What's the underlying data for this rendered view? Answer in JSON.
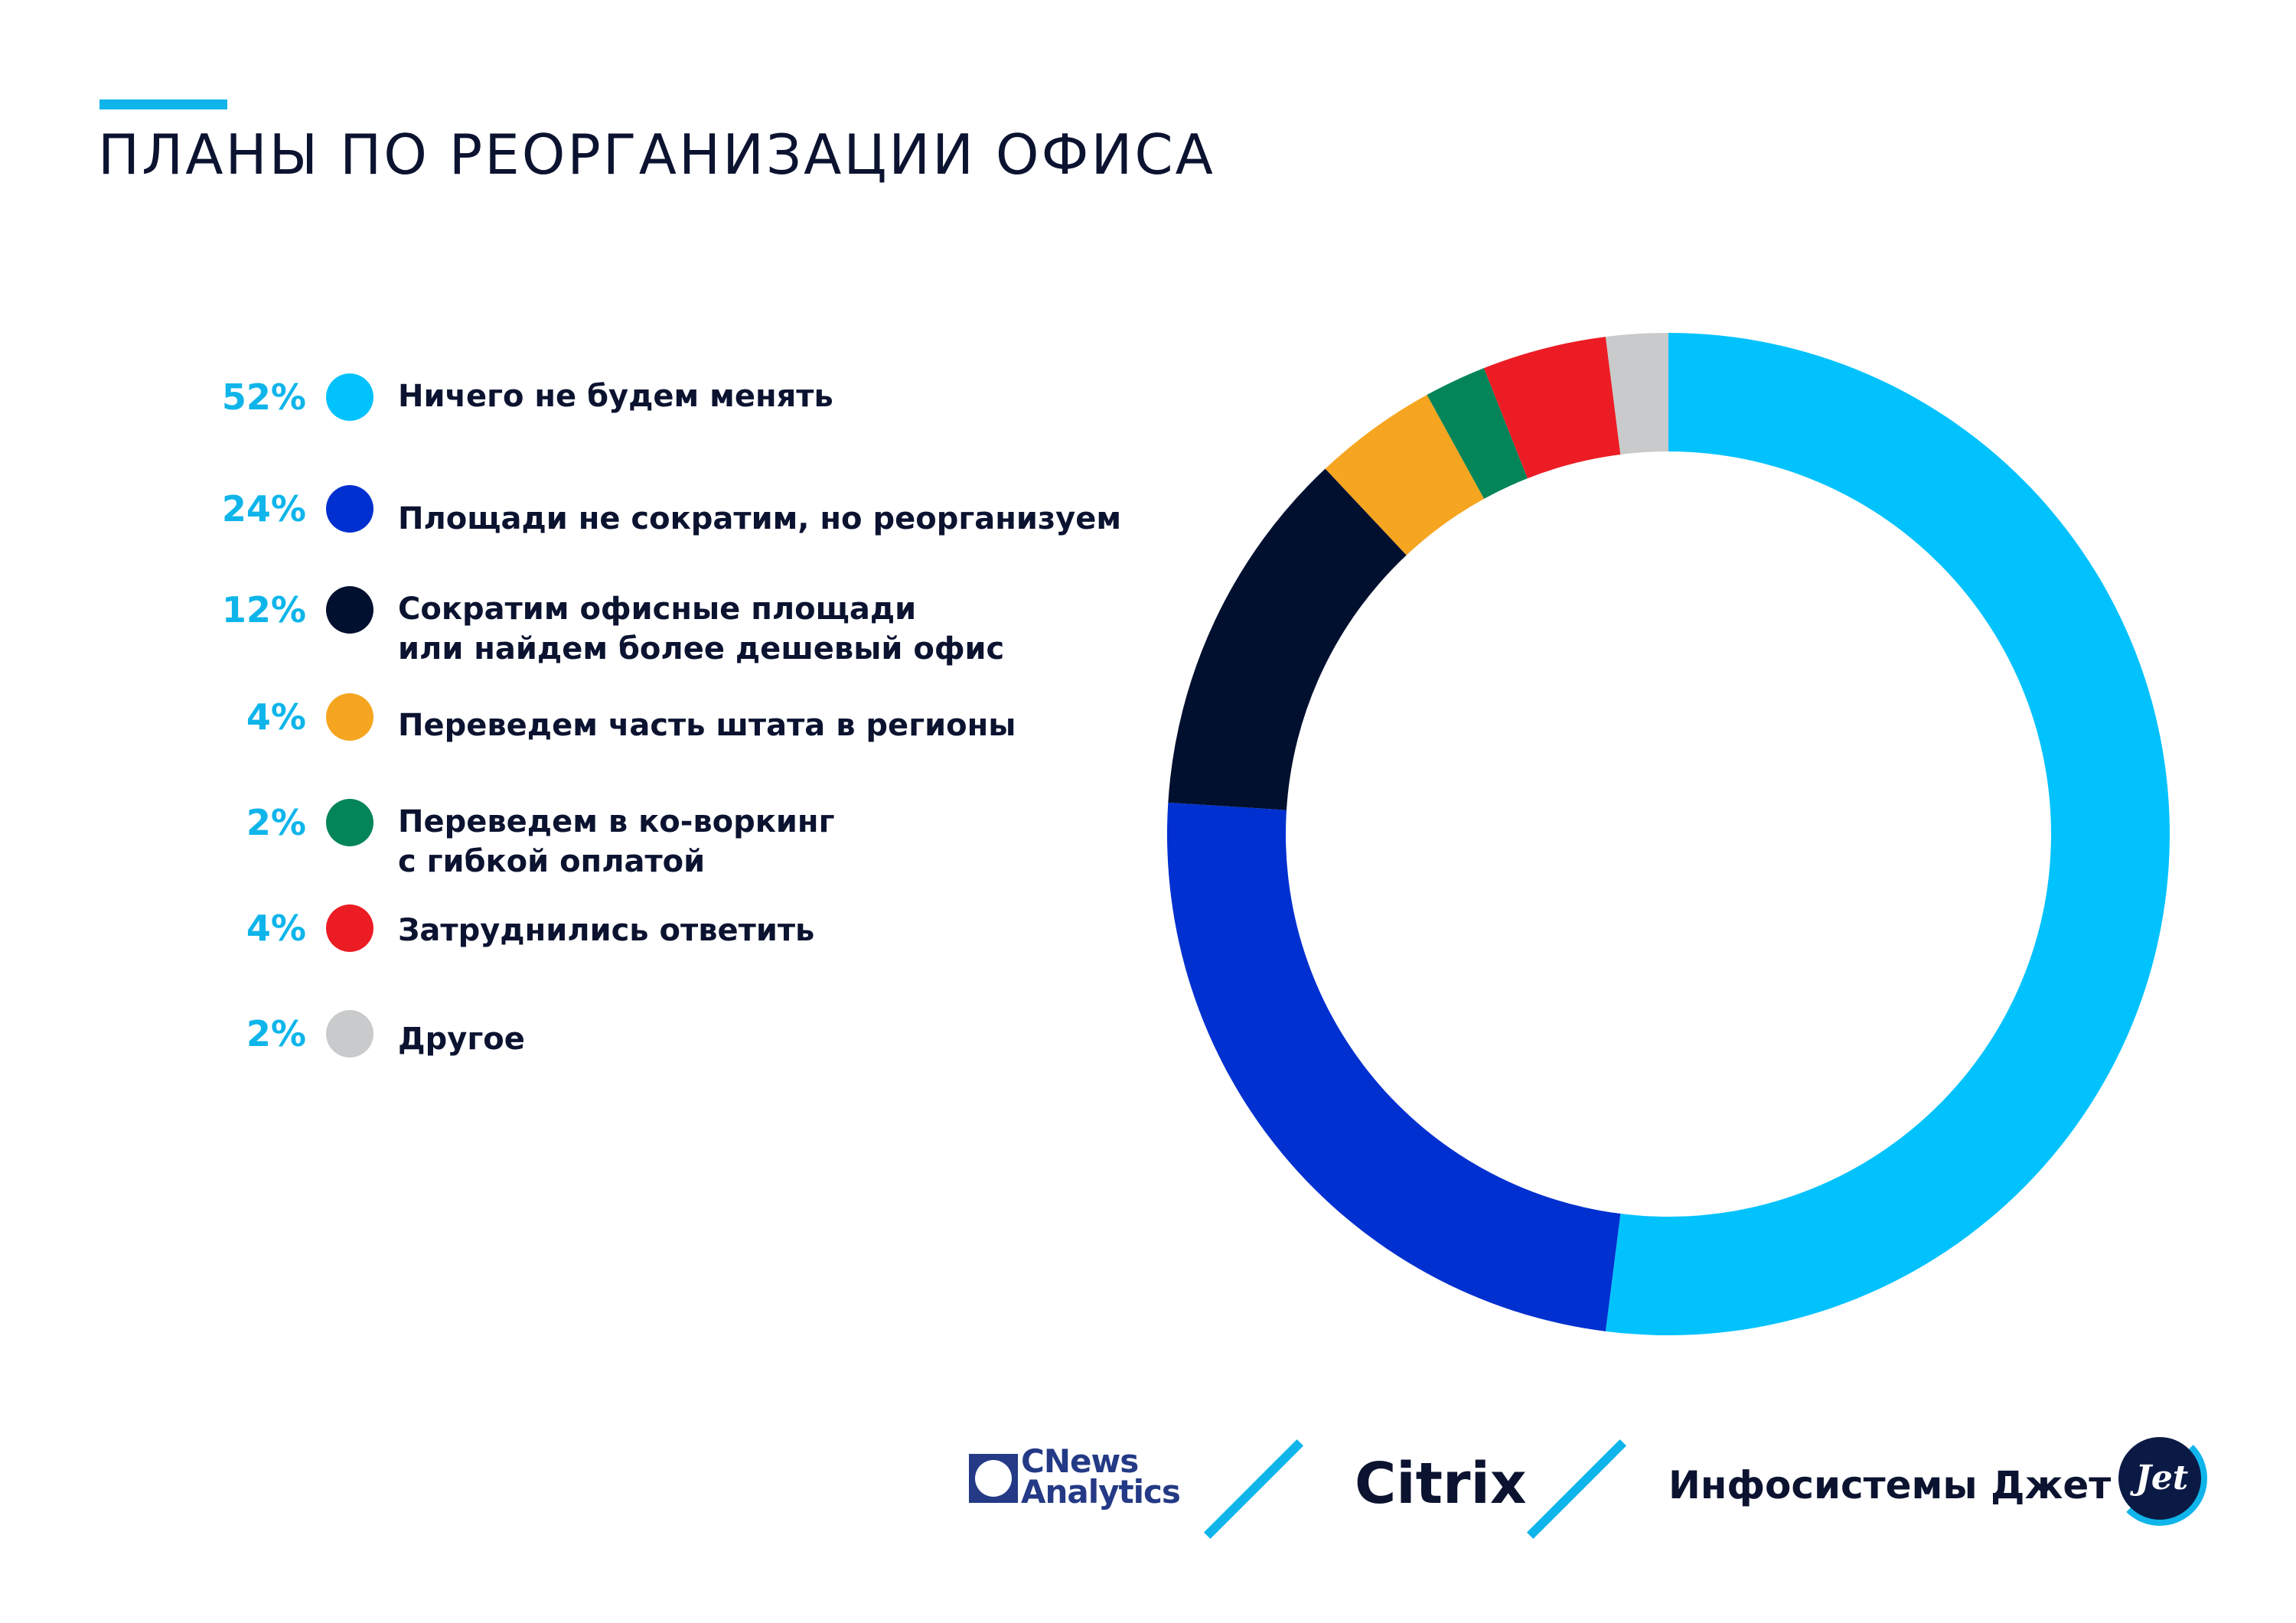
{
  "page": {
    "title": "ПЛАНЫ ПО РЕОРГАНИЗАЦИИ ОФИСА"
  },
  "colors": {
    "accent": "#0fb5ea",
    "text": "#0b1330"
  },
  "chart_data": {
    "type": "pie",
    "variant": "donut",
    "title": "",
    "series": [
      {
        "label": "Ничего не будем менять",
        "percent_label": "52%",
        "value": 52,
        "color": "#02c2fd"
      },
      {
        "label": "Площади не сократим, но реорганизуем",
        "percent_label": "24%",
        "value": 24,
        "color": "#0030d0"
      },
      {
        "label": "Сократим офисные площади\nили найдем более дешевый офис",
        "percent_label": "12%",
        "value": 12,
        "color": "#021030"
      },
      {
        "label": "Переведем часть штата в регионы",
        "percent_label": "4%",
        "value": 4,
        "color": "#f5a51f"
      },
      {
        "label": "Переведем в ко-воркинг\nс гибкой оплатой",
        "percent_label": "2%",
        "value": 2,
        "color": "#038559"
      },
      {
        "label": "Затруднились ответить",
        "percent_label": "4%",
        "value": 4,
        "color": "#ec1c24"
      },
      {
        "label": "Другое",
        "percent_label": "2%",
        "value": 2,
        "color": "#c8cacb"
      }
    ],
    "legend_position": "left"
  },
  "footer": {
    "cnews": {
      "line1": "CNews",
      "line2": "Analytics"
    },
    "citrix": "Citrix",
    "jet_name": "Инфосистемы Джет",
    "jet_badge_text": "Jet"
  }
}
